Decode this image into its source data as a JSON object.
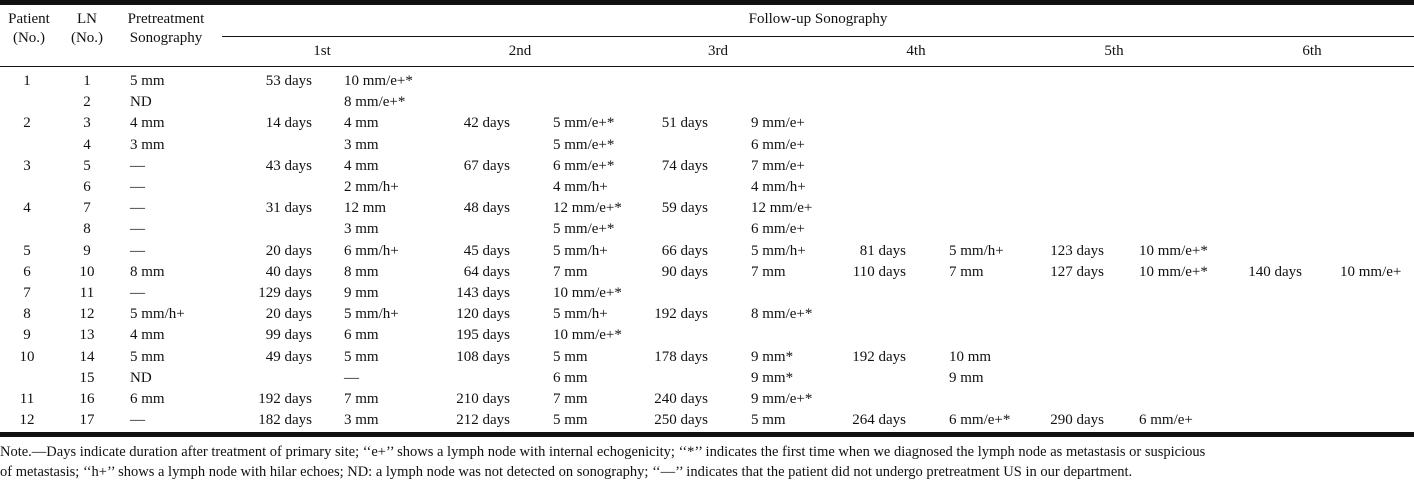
{
  "header": {
    "patient": [
      "Patient",
      "(No.)"
    ],
    "ln": [
      "LN",
      "(No.)"
    ],
    "pretreatment": [
      "Pretreatment",
      "Sonography"
    ],
    "followup_title": "Follow-up Sonography",
    "followups": [
      "1st",
      "2nd",
      "3rd",
      "4th",
      "5th",
      "6th"
    ]
  },
  "rows": [
    {
      "patient": "1",
      "ln": "1",
      "pre": "5 mm",
      "f": [
        [
          "53 days",
          "10 mm/e+*"
        ],
        [
          "",
          ""
        ],
        [
          "",
          ""
        ],
        [
          "",
          ""
        ],
        [
          "",
          ""
        ],
        [
          "",
          ""
        ]
      ]
    },
    {
      "patient": "",
      "ln": "2",
      "pre": "ND",
      "f": [
        [
          "",
          "8 mm/e+*"
        ],
        [
          "",
          ""
        ],
        [
          "",
          ""
        ],
        [
          "",
          ""
        ],
        [
          "",
          ""
        ],
        [
          "",
          ""
        ]
      ]
    },
    {
      "patient": "2",
      "ln": "3",
      "pre": "4 mm",
      "f": [
        [
          "14 days",
          "4 mm"
        ],
        [
          "42 days",
          "5 mm/e+*"
        ],
        [
          "51 days",
          "9 mm/e+"
        ],
        [
          "",
          ""
        ],
        [
          "",
          ""
        ],
        [
          "",
          ""
        ]
      ]
    },
    {
      "patient": "",
      "ln": "4",
      "pre": "3 mm",
      "f": [
        [
          "",
          "3 mm"
        ],
        [
          "",
          "5 mm/e+*"
        ],
        [
          "",
          "6 mm/e+"
        ],
        [
          "",
          ""
        ],
        [
          "",
          ""
        ],
        [
          "",
          ""
        ]
      ]
    },
    {
      "patient": "3",
      "ln": "5",
      "pre": "—",
      "f": [
        [
          "43 days",
          "4 mm"
        ],
        [
          "67 days",
          "6 mm/e+*"
        ],
        [
          "74 days",
          "7 mm/e+"
        ],
        [
          "",
          ""
        ],
        [
          "",
          ""
        ],
        [
          "",
          ""
        ]
      ]
    },
    {
      "patient": "",
      "ln": "6",
      "pre": "—",
      "f": [
        [
          "",
          "2 mm/h+"
        ],
        [
          "",
          "4 mm/h+"
        ],
        [
          "",
          "4 mm/h+"
        ],
        [
          "",
          ""
        ],
        [
          "",
          ""
        ],
        [
          "",
          ""
        ]
      ]
    },
    {
      "patient": "4",
      "ln": "7",
      "pre": "—",
      "f": [
        [
          "31 days",
          "12 mm"
        ],
        [
          "48 days",
          "12 mm/e+*"
        ],
        [
          "59 days",
          "12 mm/e+"
        ],
        [
          "",
          ""
        ],
        [
          "",
          ""
        ],
        [
          "",
          ""
        ]
      ]
    },
    {
      "patient": "",
      "ln": "8",
      "pre": "—",
      "f": [
        [
          "",
          "3 mm"
        ],
        [
          "",
          "5 mm/e+*"
        ],
        [
          "",
          "6 mm/e+"
        ],
        [
          "",
          ""
        ],
        [
          "",
          ""
        ],
        [
          "",
          ""
        ]
      ]
    },
    {
      "patient": "5",
      "ln": "9",
      "pre": "—",
      "f": [
        [
          "20 days",
          "6 mm/h+"
        ],
        [
          "45 days",
          "5 mm/h+"
        ],
        [
          "66 days",
          "5 mm/h+"
        ],
        [
          "81 days",
          "5 mm/h+"
        ],
        [
          "123 days",
          "10 mm/e+*"
        ],
        [
          "",
          ""
        ]
      ]
    },
    {
      "patient": "6",
      "ln": "10",
      "pre": "8 mm",
      "f": [
        [
          "40 days",
          "8 mm"
        ],
        [
          "64 days",
          "7 mm"
        ],
        [
          "90 days",
          "7 mm"
        ],
        [
          "110 days",
          "7 mm"
        ],
        [
          "127 days",
          "10 mm/e+*"
        ],
        [
          "140 days",
          "10 mm/e+"
        ]
      ]
    },
    {
      "patient": "7",
      "ln": "11",
      "pre": "—",
      "f": [
        [
          "129 days",
          "9 mm"
        ],
        [
          "143 days",
          "10 mm/e+*"
        ],
        [
          "",
          ""
        ],
        [
          "",
          ""
        ],
        [
          "",
          ""
        ],
        [
          "",
          ""
        ]
      ]
    },
    {
      "patient": "8",
      "ln": "12",
      "pre": "5 mm/h+",
      "f": [
        [
          "20 days",
          "5 mm/h+"
        ],
        [
          "120 days",
          "5 mm/h+"
        ],
        [
          "192 days",
          "8 mm/e+*"
        ],
        [
          "",
          ""
        ],
        [
          "",
          ""
        ],
        [
          "",
          ""
        ]
      ]
    },
    {
      "patient": "9",
      "ln": "13",
      "pre": "4 mm",
      "f": [
        [
          "99 days",
          "6 mm"
        ],
        [
          "195 days",
          "10 mm/e+*"
        ],
        [
          "",
          ""
        ],
        [
          "",
          ""
        ],
        [
          "",
          ""
        ],
        [
          "",
          ""
        ]
      ]
    },
    {
      "patient": "10",
      "ln": "14",
      "pre": "5 mm",
      "f": [
        [
          "49 days",
          "5 mm"
        ],
        [
          "108 days",
          "5 mm"
        ],
        [
          "178 days",
          "9 mm*"
        ],
        [
          "192 days",
          "10 mm"
        ],
        [
          "",
          ""
        ],
        [
          "",
          ""
        ]
      ]
    },
    {
      "patient": "",
      "ln": "15",
      "pre": "ND",
      "f": [
        [
          "",
          "—"
        ],
        [
          "",
          "6 mm"
        ],
        [
          "",
          "9 mm*"
        ],
        [
          "",
          "9 mm"
        ],
        [
          "",
          ""
        ],
        [
          "",
          ""
        ]
      ]
    },
    {
      "patient": "11",
      "ln": "16",
      "pre": "6 mm",
      "f": [
        [
          "192 days",
          "7 mm"
        ],
        [
          "210 days",
          "7 mm"
        ],
        [
          "240 days",
          "9 mm/e+*"
        ],
        [
          "",
          ""
        ],
        [
          "",
          ""
        ],
        [
          "",
          ""
        ]
      ]
    },
    {
      "patient": "12",
      "ln": "17",
      "pre": "—",
      "f": [
        [
          "182 days",
          "3 mm"
        ],
        [
          "212 days",
          "5 mm"
        ],
        [
          "250 days",
          "5 mm"
        ],
        [
          "264 days",
          "6 mm/e+*"
        ],
        [
          "290 days",
          "6 mm/e+"
        ],
        [
          "",
          ""
        ]
      ]
    }
  ],
  "note": [
    "Note.—Days indicate duration after treatment of primary site; ‘‘e+’’ shows a lymph node with internal echogenicity; ‘‘*’’ indicates the first time when we diagnosed the lymph node as metastasis or suspicious",
    "of metastasis; ‘‘h+’’ shows a lymph node with hilar echoes; ND: a lymph node was not detected on sonography; ‘‘—’’ indicates that the patient did not undergo pretreatment US in our department."
  ]
}
